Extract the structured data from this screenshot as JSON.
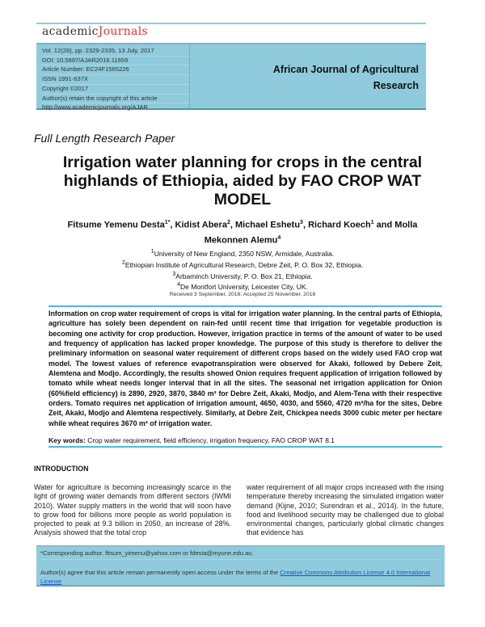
{
  "publisher": {
    "logo_part1": "academic",
    "logo_part2": "Journals",
    "logo_accent_color": "#e2342b"
  },
  "header": {
    "meta": [
      "Vol. 12(28), pp. 2329-2335, 13 July, 2017",
      "DOI: 10.5897/AJAR2016.11659",
      "Article  Number: EC24F1565226",
      "ISSN 1991-637X",
      "Copyright ©2017",
      "Author(s) retain the copyright of this article",
      "http://www.academicjournals.org/AJAR"
    ],
    "journal_name_line1": "African Journal of Agricultural",
    "journal_name_line2": "Research",
    "box_color": "#8fcbdc"
  },
  "paper": {
    "type": "Full Length Research Paper",
    "title": "Irrigation water planning for crops in the central highlands of Ethiopia, aided by FAO CROP WAT MODEL",
    "authors": [
      {
        "name": "Fitsume Yemenu Desta",
        "sup": "1*",
        "sep": ", "
      },
      {
        "name": "Kidist Abera",
        "sup": "2",
        "sep": ", "
      },
      {
        "name": "Michael Eshetu",
        "sup": "3",
        "sep": ", "
      },
      {
        "name": "Richard Koech",
        "sup": "1",
        "sep": " and "
      },
      {
        "name": "Molla Mekonnen Alemu",
        "sup": "4",
        "sep": ""
      }
    ],
    "affiliations": [
      {
        "sup": "1",
        "text": "University of New England, 2350 NSW, Armidale, Australia."
      },
      {
        "sup": "2",
        "text": "Ethiopian Institute of Agricultural Research, Debre Zeit, P. O. Box 32, Ethiopia."
      },
      {
        "sup": "3",
        "text": "Arbaminch University, P. O. Box 21, Ethiopia."
      },
      {
        "sup": "4",
        "text": "De Montfort University, Leicester City, UK."
      }
    ],
    "received": "Received 3 September, 2016; Accepted 25 November, 2016",
    "abstract": "Information on crop water requirement of crops is vital for irrigation water planning. In the central parts of Ethiopia, agriculture has solely been dependent on rain-fed until recent time that irrigation for vegetable production is becoming one activity for crop production. However, irrigation practice in terms of the amount of water to be used and frequency of application has lacked proper knowledge. The purpose of this study is therefore to deliver the preliminary information on seasonal water requirement of different crops based on the widely used FAO crop wat model. The lowest values of reference evapotranspiration were observed for Akaki, followed by Debere Zeit, Alemtena and Modjo. Accordingly, the results showed Onion requires frequent application of irrigation followed by tomato while wheat needs longer interval that in all the sites. The seasonal net irrigation application for Onion (60%field efficiency) is 2890, 2920, 3870, 3840 m³ for Debre Zeit, Akaki, Modjo, and Alem-Tena with their respective orders. Tomato requires net application of irrigation amount, 4650, 4030, and 5560, 4720 m³/ha for the sites, Debre Zeit, Akaki, Modjo and Alemtena respectively. Similarly, at Debre Zeit, Chickpea needs 3000 cubic meter per hectare while wheat requires 3670 m³ of irrigation water.",
    "keywords_label": "Key words:",
    "keywords": "Crop water requirement, field efficiency, irrigation frequency, FAO CROP WAT 8.1",
    "intro_heading": "INTRODUCTION",
    "intro_left": "Water for agriculture is becoming increasingly scarce in the light of growing water demands from different sectors (IWMI 2010). Water supply matters in the world that will soon have to grow food for billions more people as world population is projected to peak at 9.3 billion in 2050, an increase of 28%. Analysis showed that the total crop",
    "intro_right": "water requirement of all major crops increased with the rising temperature thereby increasing the simulated irrigation water demand (Kijne, 2010; Surendran et al., 2014). In the future, food and livelihood security may be challenged due to global environmental changes, particularly global climatic changes  that evidence has"
  },
  "footer": {
    "corresponding": "*Corresponding author. fitsum_yimenu@yahoo.com or fdesta@myune.edu.au.",
    "license_text": "Author(s) agree that this article remain permanently open access under the terms of the ",
    "license_link": "Creative Commons Attribution License 4.0 International License"
  }
}
